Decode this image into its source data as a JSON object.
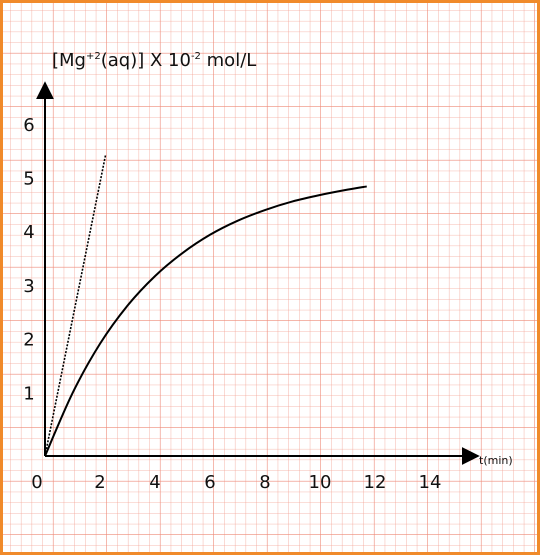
{
  "chart_data": {
    "type": "line",
    "ylabel_parts": [
      "[Mg",
      "+2",
      "(aq)]  X 10",
      "-2",
      " mol/L"
    ],
    "xlabel": "t(min)",
    "series": [
      {
        "color": "#000000",
        "dash": false,
        "x": [
          0,
          1,
          2,
          3,
          4,
          5,
          6,
          7,
          8,
          9,
          10,
          11,
          11.7
        ],
        "values": [
          0,
          1.17,
          2.09,
          2.8,
          3.35,
          3.78,
          4.12,
          4.38,
          4.58,
          4.74,
          4.86,
          4.96,
          5.02
        ]
      },
      {
        "color": "#000000",
        "dash": true,
        "x": [
          0,
          2.2
        ],
        "values": [
          0,
          5.6
        ]
      }
    ],
    "xlim": [
      0,
      15.6
    ],
    "ylim": [
      0,
      6.9
    ],
    "xticks": [
      0,
      2,
      4,
      6,
      8,
      10,
      12,
      14
    ],
    "yticks": [
      1,
      2,
      3,
      4,
      5,
      6
    ]
  }
}
